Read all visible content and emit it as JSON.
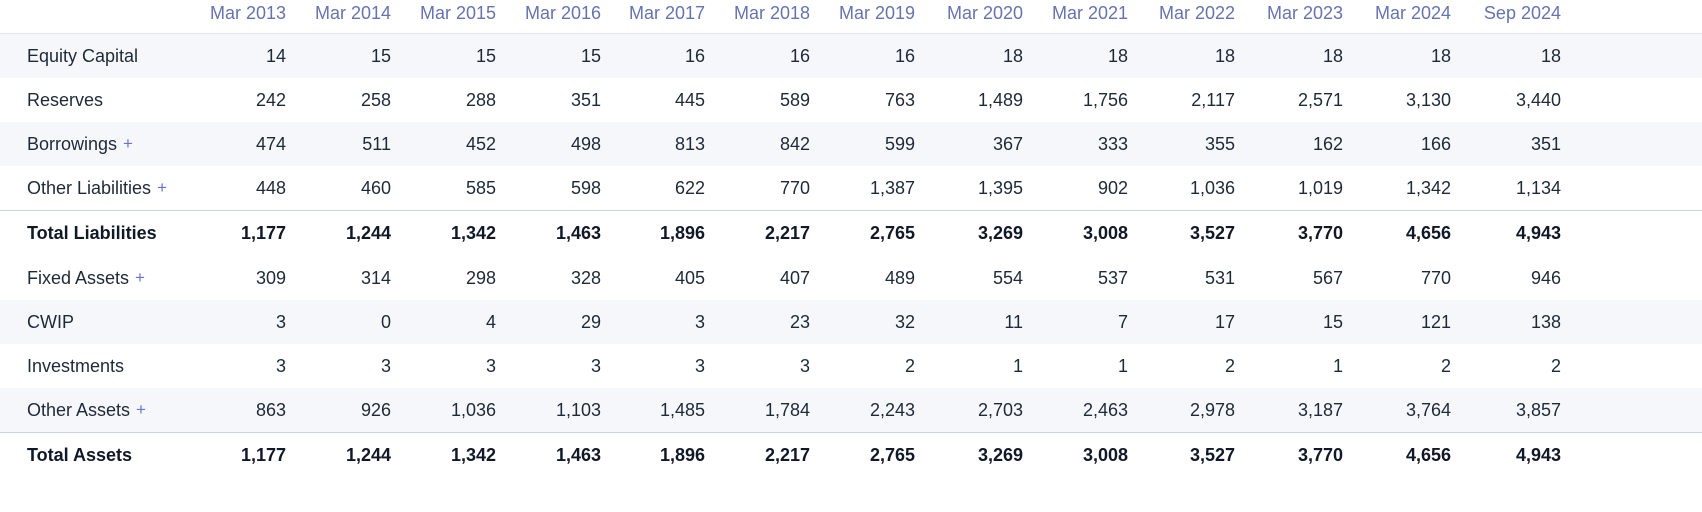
{
  "table": {
    "columns": [
      "Mar 2013",
      "Mar 2014",
      "Mar 2015",
      "Mar 2016",
      "Mar 2017",
      "Mar 2018",
      "Mar 2019",
      "Mar 2020",
      "Mar 2021",
      "Mar 2022",
      "Mar 2023",
      "Mar 2024",
      "Sep 2024"
    ],
    "expand_symbol": "+",
    "rows": [
      {
        "label": "Equity Capital",
        "expandable": false,
        "total": false,
        "values": [
          "14",
          "15",
          "15",
          "15",
          "16",
          "16",
          "16",
          "18",
          "18",
          "18",
          "18",
          "18",
          "18"
        ]
      },
      {
        "label": "Reserves",
        "expandable": false,
        "total": false,
        "values": [
          "242",
          "258",
          "288",
          "351",
          "445",
          "589",
          "763",
          "1,489",
          "1,756",
          "2,117",
          "2,571",
          "3,130",
          "3,440"
        ]
      },
      {
        "label": "Borrowings",
        "expandable": true,
        "total": false,
        "values": [
          "474",
          "511",
          "452",
          "498",
          "813",
          "842",
          "599",
          "367",
          "333",
          "355",
          "162",
          "166",
          "351"
        ]
      },
      {
        "label": "Other Liabilities",
        "expandable": true,
        "total": false,
        "values": [
          "448",
          "460",
          "585",
          "598",
          "622",
          "770",
          "1,387",
          "1,395",
          "902",
          "1,036",
          "1,019",
          "1,342",
          "1,134"
        ]
      },
      {
        "label": "Total Liabilities",
        "expandable": false,
        "total": true,
        "values": [
          "1,177",
          "1,244",
          "1,342",
          "1,463",
          "1,896",
          "2,217",
          "2,765",
          "3,269",
          "3,008",
          "3,527",
          "3,770",
          "4,656",
          "4,943"
        ]
      },
      {
        "label": "Fixed Assets",
        "expandable": true,
        "total": false,
        "values": [
          "309",
          "314",
          "298",
          "328",
          "405",
          "407",
          "489",
          "554",
          "537",
          "531",
          "567",
          "770",
          "946"
        ]
      },
      {
        "label": "CWIP",
        "expandable": false,
        "total": false,
        "values": [
          "3",
          "0",
          "4",
          "29",
          "3",
          "23",
          "32",
          "11",
          "7",
          "17",
          "15",
          "121",
          "138"
        ]
      },
      {
        "label": "Investments",
        "expandable": false,
        "total": false,
        "values": [
          "3",
          "3",
          "3",
          "3",
          "3",
          "3",
          "2",
          "1",
          "1",
          "2",
          "1",
          "2",
          "2"
        ]
      },
      {
        "label": "Other Assets",
        "expandable": true,
        "total": false,
        "values": [
          "863",
          "926",
          "1,036",
          "1,103",
          "1,485",
          "1,784",
          "2,243",
          "2,703",
          "2,463",
          "2,978",
          "3,187",
          "3,764",
          "3,857"
        ]
      },
      {
        "label": "Total Assets",
        "expandable": false,
        "total": true,
        "values": [
          "1,177",
          "1,244",
          "1,342",
          "1,463",
          "1,896",
          "2,217",
          "2,765",
          "3,269",
          "3,008",
          "3,527",
          "3,770",
          "4,656",
          "4,943"
        ]
      }
    ]
  },
  "colors": {
    "header_text": "#6673b0",
    "plus_accent": "#6673d9",
    "stripe": "#f6f7fb",
    "total_border": "#c9d3e6"
  }
}
